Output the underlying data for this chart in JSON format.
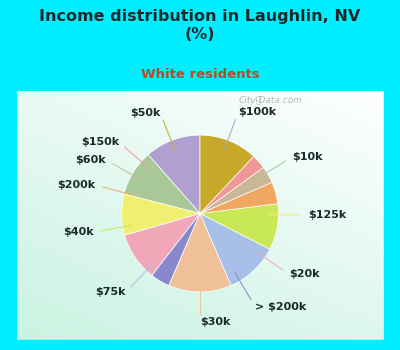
{
  "title": "Income distribution in Laughlin, NV\n(%)",
  "subtitle": "White residents",
  "title_color": "#1a2a2a",
  "subtitle_color": "#b05020",
  "bg_top": "#00eeff",
  "watermark": "City-Data.com",
  "labels": [
    "$100k",
    "$10k",
    "$125k",
    "$20k",
    "> $200k",
    "$30k",
    "$75k",
    "$40k",
    "$200k",
    "$60k",
    "$150k",
    "$50k"
  ],
  "values": [
    11.5,
    9.5,
    8.5,
    10.0,
    4.0,
    13.0,
    11.0,
    9.5,
    4.5,
    3.5,
    3.0,
    12.0
  ],
  "colors": [
    "#b0a0d0",
    "#a8c898",
    "#f0f070",
    "#f0a8b8",
    "#8888cc",
    "#f0c098",
    "#a8c0e8",
    "#c8e858",
    "#f0a860",
    "#c8b898",
    "#f09898",
    "#c8a828"
  ],
  "wedge_linewidth": 0.5,
  "wedge_linecolor": "white",
  "label_fontsize": 8,
  "label_color": "#1a2a2a",
  "startangle": 90
}
